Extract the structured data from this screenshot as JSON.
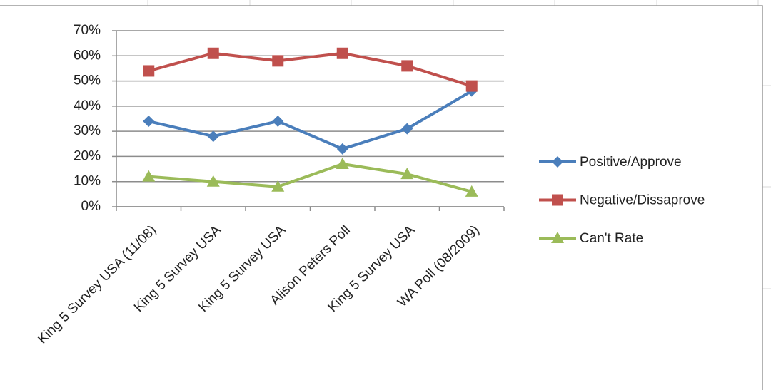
{
  "chart_data": {
    "type": "line",
    "categories": [
      "King 5 Survey USA (11/08)",
      "King 5 Survey USA",
      "King 5 Survey USA",
      "Alison Peters Poll",
      "King 5 Survey USA",
      "WA Poll (08/2009)"
    ],
    "series": [
      {
        "name": "Positive/Approve",
        "color": "#4a7ebb",
        "marker": "diamond",
        "values": [
          34,
          28,
          34,
          23,
          31,
          46
        ]
      },
      {
        "name": "Negative/Dissaprove",
        "color": "#c0504d",
        "marker": "square",
        "values": [
          54,
          61,
          58,
          61,
          56,
          48
        ]
      },
      {
        "name": "Can't Rate",
        "color": "#9bbb59",
        "marker": "triangle",
        "values": [
          12,
          10,
          8,
          17,
          13,
          6
        ]
      }
    ],
    "ylim": [
      0,
      70
    ],
    "yticks": [
      {
        "value": 0,
        "label": "0%"
      },
      {
        "value": 10,
        "label": "10%"
      },
      {
        "value": 20,
        "label": "20%"
      },
      {
        "value": 30,
        "label": "30%"
      },
      {
        "value": 40,
        "label": "40%"
      },
      {
        "value": 50,
        "label": "50%"
      },
      {
        "value": 60,
        "label": "60%"
      },
      {
        "value": 70,
        "label": "70%"
      }
    ],
    "grid": true,
    "legend": "right"
  }
}
